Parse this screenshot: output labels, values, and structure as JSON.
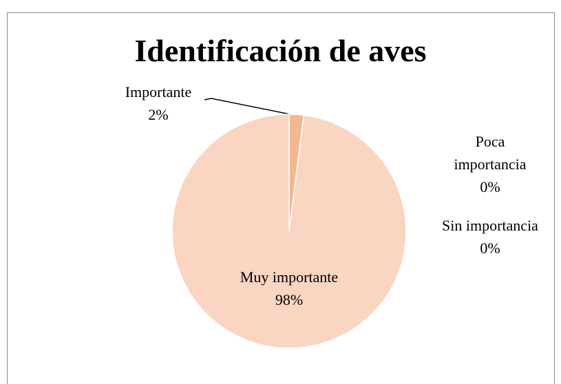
{
  "chart_data": {
    "type": "pie",
    "title": "Identificación de aves",
    "categories": [
      "Sin importancia",
      "Poca importancia",
      "Importante",
      "Muy importante"
    ],
    "values": [
      0,
      0,
      2,
      98
    ],
    "value_labels": [
      "0%",
      "0%",
      "2%",
      "98%"
    ],
    "colors": [
      "#d98a5a",
      "#e9a070",
      "#f5b78e",
      "#f9d5c2"
    ]
  }
}
